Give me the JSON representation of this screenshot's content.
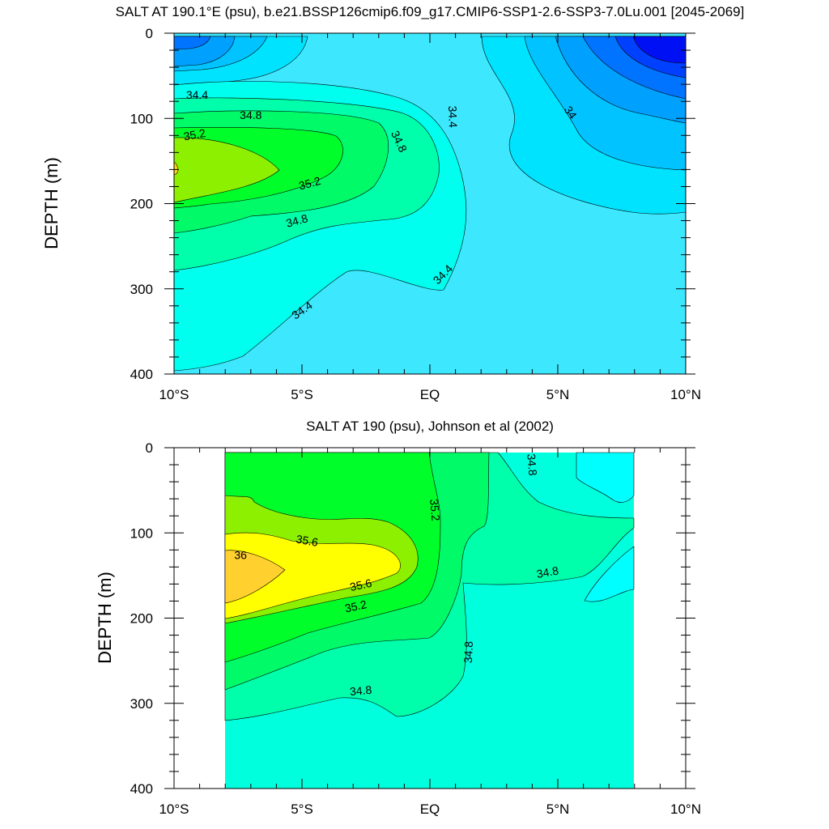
{
  "chart_data": [
    {
      "type": "contour",
      "title": "SALT AT 190.1°E (psu), b.e21.BSSP126cmip6.f09_g17.CMIP6-SSP1-2.6-SSP3-7.0Lu.001 [2045-2069]",
      "xlabel": "",
      "ylabel": "DEPTH (m)",
      "xlim": [
        -10,
        10
      ],
      "ylim": [
        400,
        0
      ],
      "x_ticks": [
        -10,
        -5,
        0,
        5,
        10
      ],
      "x_tick_labels": [
        "10°S",
        "5°S",
        "EQ",
        "5°N",
        "10°N"
      ],
      "y_ticks": [
        0,
        100,
        200,
        300,
        400
      ],
      "y_tick_labels": [
        "0",
        "100",
        "200",
        "300",
        "400"
      ],
      "level_interval": 0.2,
      "levels": [
        {
          "min": 33.4,
          "color": "#0040ff"
        },
        {
          "min": 33.6,
          "color": "#0073ff"
        },
        {
          "min": 33.8,
          "color": "#00a0ff"
        },
        {
          "min": 34.0,
          "color": "#00c3ff"
        },
        {
          "min": 34.2,
          "color": "#00e3ff"
        },
        {
          "min": 34.4,
          "color": "#3de8ff"
        },
        {
          "min": 34.4,
          "color": "#00ffee"
        },
        {
          "min": 34.6,
          "color": "#00ffaa"
        },
        {
          "min": 34.8,
          "color": "#00fa68"
        },
        {
          "min": 35.0,
          "color": "#00ff2a"
        },
        {
          "min": 35.2,
          "color": "#8cf000"
        }
      ],
      "contour_labels": [
        {
          "text": "34.4",
          "x": -9.1,
          "y": 72,
          "angle": 0
        },
        {
          "text": "34.8",
          "x": -7.0,
          "y": 96,
          "angle": 0
        },
        {
          "text": "35.2",
          "x": -9.2,
          "y": 119,
          "angle": -10
        },
        {
          "text": "35.2",
          "x": -4.7,
          "y": 176,
          "angle": -15
        },
        {
          "text": "34.8",
          "x": -5.2,
          "y": 220,
          "angle": -15
        },
        {
          "text": "34.4",
          "x": -5.0,
          "y": 325,
          "angle": -35
        },
        {
          "text": "34.8",
          "x": -1.2,
          "y": 127,
          "angle": 65
        },
        {
          "text": "34.4",
          "x": 0.9,
          "y": 98,
          "angle": 88
        },
        {
          "text": "34.4",
          "x": 0.5,
          "y": 283,
          "angle": -45
        },
        {
          "text": "34",
          "x": 5.5,
          "y": 93,
          "angle": 55
        }
      ]
    },
    {
      "type": "contour",
      "title": "SALT AT 190 (psu), Johnson et al (2002)",
      "xlabel": "",
      "ylabel": "DEPTH (m)",
      "xlim": [
        -10,
        10
      ],
      "ylim": [
        400,
        0
      ],
      "x_ticks": [
        -10,
        -5,
        0,
        5,
        10
      ],
      "x_tick_labels": [
        "10°S",
        "5°S",
        "EQ",
        "5°N",
        "10°N"
      ],
      "y_ticks": [
        0,
        100,
        200,
        300,
        400
      ],
      "y_tick_labels": [
        "0",
        "100",
        "200",
        "300",
        "400"
      ],
      "data_x_range": [
        -8,
        8
      ],
      "level_interval": 0.2,
      "levels": [
        {
          "min": 34.4,
          "color": "#00ffff"
        },
        {
          "min": 34.6,
          "color": "#00ffdd"
        },
        {
          "min": 34.8,
          "color": "#00ffaa"
        },
        {
          "min": 35.0,
          "color": "#00fa68"
        },
        {
          "min": 35.2,
          "color": "#00ff2a"
        },
        {
          "min": 35.4,
          "color": "#8cf000"
        },
        {
          "min": 35.6,
          "color": "#ffff00"
        },
        {
          "min": 35.8,
          "color": "#ffd02e"
        }
      ],
      "contour_labels": [
        {
          "text": "35.6",
          "x": -4.8,
          "y": 109,
          "angle": 10
        },
        {
          "text": "36",
          "x": -7.4,
          "y": 126,
          "angle": 0
        },
        {
          "text": "35.6",
          "x": -2.7,
          "y": 161,
          "angle": -12
        },
        {
          "text": "35.2",
          "x": -2.9,
          "y": 186,
          "angle": -12
        },
        {
          "text": "34.8",
          "x": -2.7,
          "y": 285,
          "angle": -5
        },
        {
          "text": "35.2",
          "x": 0.2,
          "y": 73,
          "angle": 85
        },
        {
          "text": "34.8",
          "x": 1.5,
          "y": 240,
          "angle": -88
        },
        {
          "text": "34.8",
          "x": 4.0,
          "y": 20,
          "angle": 85
        },
        {
          "text": "34.8",
          "x": 4.6,
          "y": 146,
          "angle": -10
        }
      ]
    }
  ]
}
